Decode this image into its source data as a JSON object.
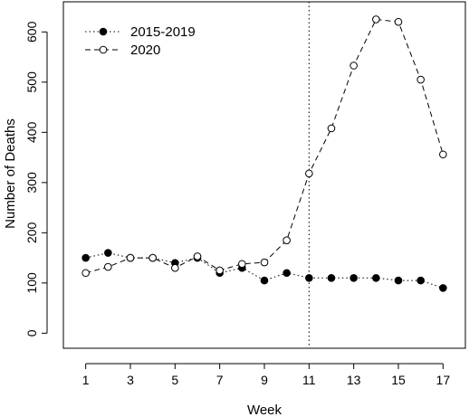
{
  "chart_data": {
    "type": "line",
    "title": "",
    "xlabel": "Week",
    "ylabel": "Number of Deaths",
    "xlim": [
      0,
      18
    ],
    "ylim": [
      -30,
      660
    ],
    "x_ticks": [
      1,
      3,
      5,
      7,
      9,
      11,
      13,
      15,
      17
    ],
    "y_ticks": [
      0,
      100,
      200,
      300,
      400,
      500,
      600
    ],
    "grid": false,
    "legend_position": "top-left",
    "reference_line": {
      "x": 11,
      "style": "dotted"
    },
    "series": [
      {
        "name": "2015-2019",
        "marker": "filled-circle",
        "line_style": "dotted",
        "x": [
          1,
          2,
          3,
          4,
          5,
          6,
          7,
          8,
          9,
          10,
          11,
          12,
          13,
          14,
          15,
          16,
          17
        ],
        "values": [
          150,
          160,
          150,
          150,
          140,
          150,
          120,
          130,
          105,
          120,
          110,
          110,
          110,
          110,
          105,
          105,
          90
        ]
      },
      {
        "name": "2020",
        "marker": "open-circle",
        "line_style": "dashed",
        "x": [
          1,
          2,
          3,
          4,
          5,
          6,
          7,
          8,
          9,
          10,
          11,
          12,
          13,
          14,
          15,
          16,
          17
        ],
        "values": [
          120,
          132,
          150,
          150,
          130,
          153,
          125,
          138,
          141,
          185,
          318,
          408,
          533,
          625,
          620,
          505,
          356
        ]
      }
    ]
  }
}
